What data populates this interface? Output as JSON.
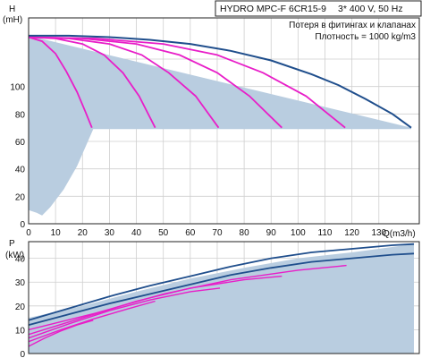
{
  "title_box": {
    "model": "HYDRO MPC-F 6CR15-9",
    "electrical": "3* 400 V, 50 Hz",
    "note": "Потеря в фитингах и клапанах",
    "density": "Плотность = 1000 kg/m3"
  },
  "colors": {
    "max_curve": "#1f4e8c",
    "pump_curves": "#e81ec8",
    "operating_area": "#b9cde0",
    "grid": "#cfcfcf"
  },
  "chart_data": [
    {
      "type": "line",
      "name": "head",
      "ylabel": "H",
      "yunit": "(mH)",
      "xlabel": "Q(m3/h)",
      "xlim": [
        0,
        145
      ],
      "ylim": [
        0,
        150
      ],
      "xticks": [
        0,
        10,
        20,
        30,
        40,
        50,
        60,
        70,
        80,
        90,
        100,
        110,
        120,
        130
      ],
      "yticks": [
        0,
        20,
        40,
        60,
        80,
        100,
        120
      ],
      "ytick_labels": [
        "0",
        "20",
        "40",
        "60",
        "80",
        "100",
        ""
      ],
      "grid": true,
      "max_curve": {
        "x": [
          0,
          15,
          30,
          45,
          60,
          75,
          90,
          105,
          115,
          125,
          135,
          142
        ],
        "y": [
          137,
          137,
          136,
          134,
          131,
          126,
          119,
          109,
          101,
          91,
          80,
          70
        ]
      },
      "pump_curves": [
        {
          "x": [
            0,
            5,
            10,
            14,
            18,
            21,
            23.5
          ],
          "y": [
            136,
            133,
            124,
            111,
            96,
            82,
            70
          ]
        },
        {
          "x": [
            0,
            10,
            20,
            28,
            35,
            41,
            47
          ],
          "y": [
            136,
            135,
            131,
            123,
            110,
            93,
            70
          ]
        },
        {
          "x": [
            0,
            15,
            30,
            42,
            52,
            62,
            70.5
          ],
          "y": [
            136,
            135,
            131,
            123,
            110,
            93,
            70
          ]
        },
        {
          "x": [
            0,
            20,
            40,
            56,
            70,
            82,
            94
          ],
          "y": [
            136,
            135,
            131,
            123,
            110,
            93,
            70
          ]
        },
        {
          "x": [
            0,
            25,
            50,
            70,
            87,
            103,
            117.5
          ],
          "y": [
            136,
            135,
            131,
            123,
            110,
            93,
            70
          ]
        }
      ],
      "operating_area": {
        "x": [
          0,
          142,
          142,
          24,
          22,
          18,
          13,
          8,
          5,
          3,
          0
        ],
        "y": [
          137,
          70,
          69,
          69,
          60,
          42,
          25,
          12,
          6,
          8,
          10
        ]
      }
    },
    {
      "type": "line",
      "name": "power",
      "ylabel": "P",
      "yunit": "(kW)",
      "xlim": [
        0,
        145
      ],
      "ylim": [
        0,
        47
      ],
      "yticks": [
        0,
        10,
        20,
        30,
        40
      ],
      "grid": true,
      "max_curves": [
        {
          "x": [
            0,
            15,
            30,
            45,
            60,
            75,
            90,
            105,
            120,
            135,
            143
          ],
          "y": [
            14,
            19,
            24,
            28.5,
            32.5,
            36.5,
            40,
            42.5,
            44,
            45.5,
            46
          ]
        },
        {
          "x": [
            0,
            15,
            30,
            45,
            60,
            75,
            90,
            105,
            120,
            135,
            143
          ],
          "y": [
            12,
            16.5,
            21,
            25,
            29,
            33,
            36,
            38.5,
            40,
            41.5,
            42
          ]
        }
      ],
      "pump_curves": [
        {
          "x": [
            0,
            25,
            50,
            75,
            100,
            118
          ],
          "y": [
            10,
            17,
            25,
            31,
            35,
            37
          ]
        },
        {
          "x": [
            0,
            20,
            40,
            60,
            80,
            94
          ],
          "y": [
            8,
            15,
            22,
            27.5,
            31,
            32.5
          ]
        },
        {
          "x": [
            0,
            15,
            30,
            45,
            60,
            71
          ],
          "y": [
            6.5,
            12.5,
            18,
            22.5,
            26,
            27.5
          ]
        },
        {
          "x": [
            0,
            12,
            24,
            36,
            47
          ],
          "y": [
            5,
            10,
            14.5,
            18.5,
            22
          ]
        },
        {
          "x": [
            0,
            6,
            12,
            18,
            24
          ],
          "y": [
            3,
            6.5,
            9.5,
            12,
            14
          ]
        }
      ],
      "operating_area": {
        "x": [
          0,
          20,
          40,
          60,
          80,
          100,
          120,
          143,
          143,
          120,
          100,
          80,
          60,
          40,
          20,
          0
        ],
        "y": [
          15,
          20,
          26,
          31.5,
          36,
          40,
          42.5,
          46,
          0,
          0,
          0,
          0,
          0,
          0,
          0,
          0
        ]
      }
    }
  ]
}
